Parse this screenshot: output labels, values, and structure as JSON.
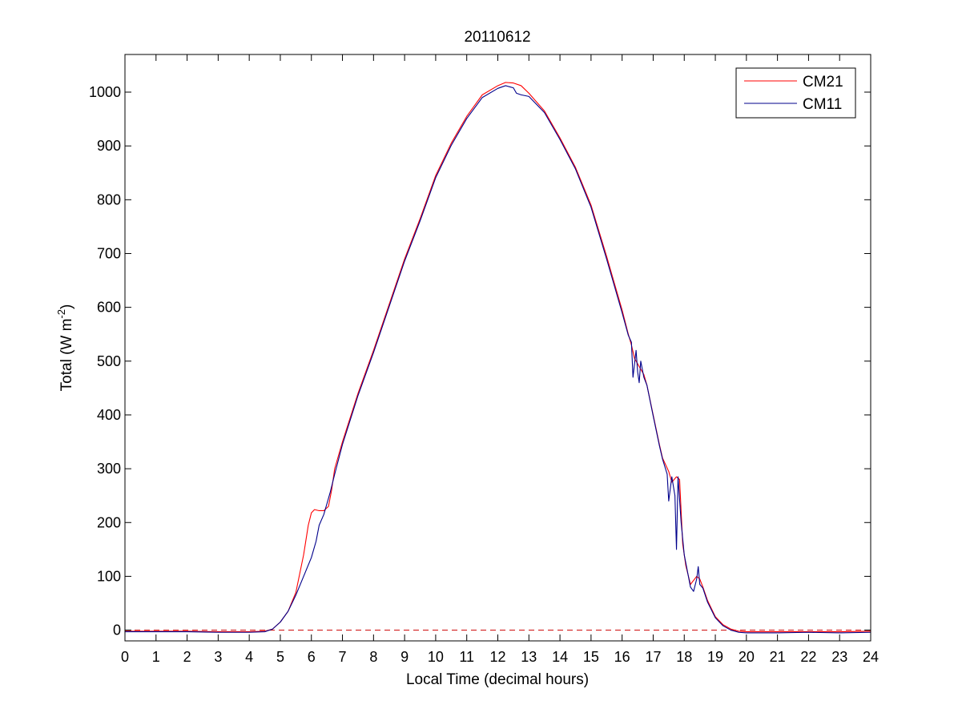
{
  "chart_data": {
    "type": "line",
    "title": "20110612",
    "xlabel": "Local Time (decimal hours)",
    "ylabel": {
      "main": "Total (W m",
      "superscript": "-2",
      "close": ")"
    },
    "xlim": [
      0,
      24
    ],
    "ylim": [
      -20,
      1070
    ],
    "xticks": [
      0,
      1,
      2,
      3,
      4,
      5,
      6,
      7,
      8,
      9,
      10,
      11,
      12,
      13,
      14,
      15,
      16,
      17,
      18,
      19,
      20,
      21,
      22,
      23,
      24
    ],
    "yticks": [
      0,
      100,
      200,
      300,
      400,
      500,
      600,
      700,
      800,
      900,
      1000
    ],
    "grid": false,
    "legend_position": "top-right",
    "reference_line": {
      "y": 0,
      "color": "#cc0000",
      "style": "dashed"
    },
    "series": [
      {
        "name": "CM21",
        "color": "#ff0000",
        "points": [
          [
            0,
            -2
          ],
          [
            1,
            -2
          ],
          [
            2,
            -2
          ],
          [
            3,
            -3
          ],
          [
            4,
            -3
          ],
          [
            4.5,
            -2
          ],
          [
            4.75,
            2
          ],
          [
            5,
            15
          ],
          [
            5.25,
            35
          ],
          [
            5.5,
            70
          ],
          [
            5.75,
            140
          ],
          [
            5.9,
            195
          ],
          [
            6.0,
            218
          ],
          [
            6.1,
            224
          ],
          [
            6.25,
            222
          ],
          [
            6.4,
            222
          ],
          [
            6.55,
            230
          ],
          [
            6.65,
            260
          ],
          [
            6.75,
            300
          ],
          [
            7,
            350
          ],
          [
            7.5,
            440
          ],
          [
            8,
            520
          ],
          [
            8.5,
            605
          ],
          [
            9,
            690
          ],
          [
            9.5,
            765
          ],
          [
            10,
            845
          ],
          [
            10.5,
            905
          ],
          [
            11,
            955
          ],
          [
            11.5,
            995
          ],
          [
            12,
            1012
          ],
          [
            12.25,
            1018
          ],
          [
            12.5,
            1017
          ],
          [
            12.75,
            1012
          ],
          [
            13,
            998
          ],
          [
            13.5,
            965
          ],
          [
            14,
            915
          ],
          [
            14.5,
            860
          ],
          [
            15,
            790
          ],
          [
            15.5,
            695
          ],
          [
            16,
            595
          ],
          [
            16.2,
            550
          ],
          [
            16.3,
            530
          ],
          [
            16.4,
            505
          ],
          [
            16.5,
            495
          ],
          [
            16.6,
            485
          ],
          [
            16.7,
            475
          ],
          [
            16.8,
            455
          ],
          [
            17,
            400
          ],
          [
            17.2,
            345
          ],
          [
            17.3,
            320
          ],
          [
            17.5,
            295
          ],
          [
            17.6,
            275
          ],
          [
            17.75,
            285
          ],
          [
            17.85,
            280
          ],
          [
            17.95,
            160
          ],
          [
            18.05,
            120
          ],
          [
            18.2,
            85
          ],
          [
            18.4,
            100
          ],
          [
            18.5,
            95
          ],
          [
            18.6,
            80
          ],
          [
            18.75,
            55
          ],
          [
            19,
            25
          ],
          [
            19.25,
            10
          ],
          [
            19.5,
            2
          ],
          [
            19.75,
            -2
          ],
          [
            20,
            -3
          ],
          [
            21,
            -3
          ],
          [
            22,
            -3
          ],
          [
            23,
            -3
          ],
          [
            24,
            -2
          ]
        ]
      },
      {
        "name": "CM11",
        "color": "#00008b",
        "points": [
          [
            0,
            -3
          ],
          [
            1,
            -3
          ],
          [
            2,
            -3
          ],
          [
            3,
            -4
          ],
          [
            4,
            -4
          ],
          [
            4.5,
            -3
          ],
          [
            4.75,
            2
          ],
          [
            5,
            15
          ],
          [
            5.25,
            35
          ],
          [
            5.5,
            65
          ],
          [
            5.75,
            100
          ],
          [
            6,
            135
          ],
          [
            6.15,
            165
          ],
          [
            6.25,
            195
          ],
          [
            6.4,
            215
          ],
          [
            6.5,
            235
          ],
          [
            6.6,
            255
          ],
          [
            6.75,
            290
          ],
          [
            7,
            345
          ],
          [
            7.5,
            436
          ],
          [
            8,
            516
          ],
          [
            8.5,
            601
          ],
          [
            9,
            686
          ],
          [
            9.5,
            761
          ],
          [
            10,
            841
          ],
          [
            10.5,
            901
          ],
          [
            11,
            951
          ],
          [
            11.5,
            990
          ],
          [
            12,
            1007
          ],
          [
            12.25,
            1012
          ],
          [
            12.5,
            1008
          ],
          [
            12.6,
            998
          ],
          [
            12.75,
            995
          ],
          [
            13,
            992
          ],
          [
            13.5,
            962
          ],
          [
            14,
            912
          ],
          [
            14.5,
            857
          ],
          [
            15,
            786
          ],
          [
            15.5,
            690
          ],
          [
            16,
            590
          ],
          [
            16.2,
            548
          ],
          [
            16.3,
            535
          ],
          [
            16.35,
            470
          ],
          [
            16.45,
            520
          ],
          [
            16.5,
            480
          ],
          [
            16.55,
            460
          ],
          [
            16.6,
            500
          ],
          [
            16.7,
            470
          ],
          [
            16.8,
            455
          ],
          [
            17,
            398
          ],
          [
            17.2,
            343
          ],
          [
            17.3,
            318
          ],
          [
            17.45,
            290
          ],
          [
            17.5,
            240
          ],
          [
            17.6,
            285
          ],
          [
            17.7,
            250
          ],
          [
            17.75,
            150
          ],
          [
            17.8,
            285
          ],
          [
            17.9,
            200
          ],
          [
            18.0,
            140
          ],
          [
            18.2,
            80
          ],
          [
            18.3,
            72
          ],
          [
            18.4,
            95
          ],
          [
            18.45,
            118
          ],
          [
            18.5,
            85
          ],
          [
            18.6,
            78
          ],
          [
            18.75,
            52
          ],
          [
            19,
            23
          ],
          [
            19.25,
            8
          ],
          [
            19.5,
            0
          ],
          [
            19.75,
            -4
          ],
          [
            20,
            -5
          ],
          [
            21,
            -5
          ],
          [
            22,
            -4
          ],
          [
            23,
            -5
          ],
          [
            24,
            -4
          ]
        ]
      }
    ]
  }
}
